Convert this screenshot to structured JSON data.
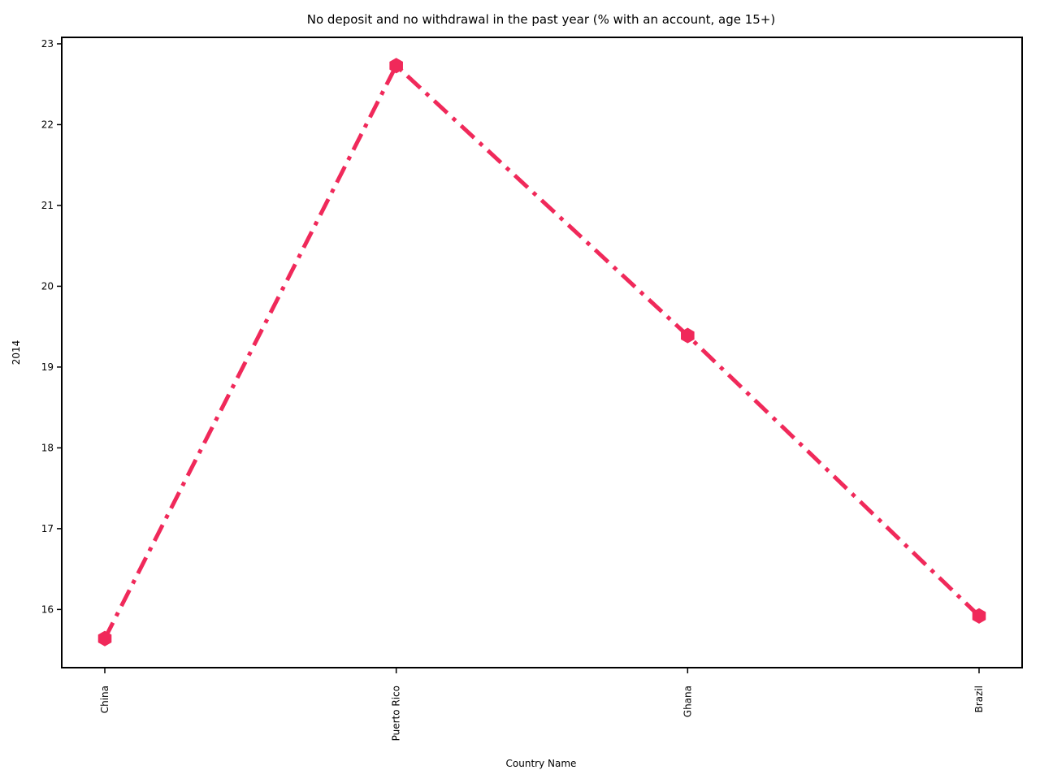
{
  "chart_data": {
    "type": "line",
    "title": "No deposit and no withdrawal in the past year (% with an account, age 15+)",
    "xlabel": "Country Name",
    "ylabel": "2014",
    "categories": [
      "China",
      "Puerto Rico",
      "Ghana",
      "Brazil"
    ],
    "series": [
      {
        "values": [
          15.64,
          22.73,
          19.39,
          15.92
        ],
        "color": "#f0295a",
        "line_style": "dash-dot",
        "marker": "hexagon"
      }
    ],
    "ylim": [
      15.28,
      23.08
    ],
    "yticks": [
      16,
      17,
      18,
      19,
      20,
      21,
      22,
      23
    ],
    "grid": false,
    "legend": "none"
  }
}
